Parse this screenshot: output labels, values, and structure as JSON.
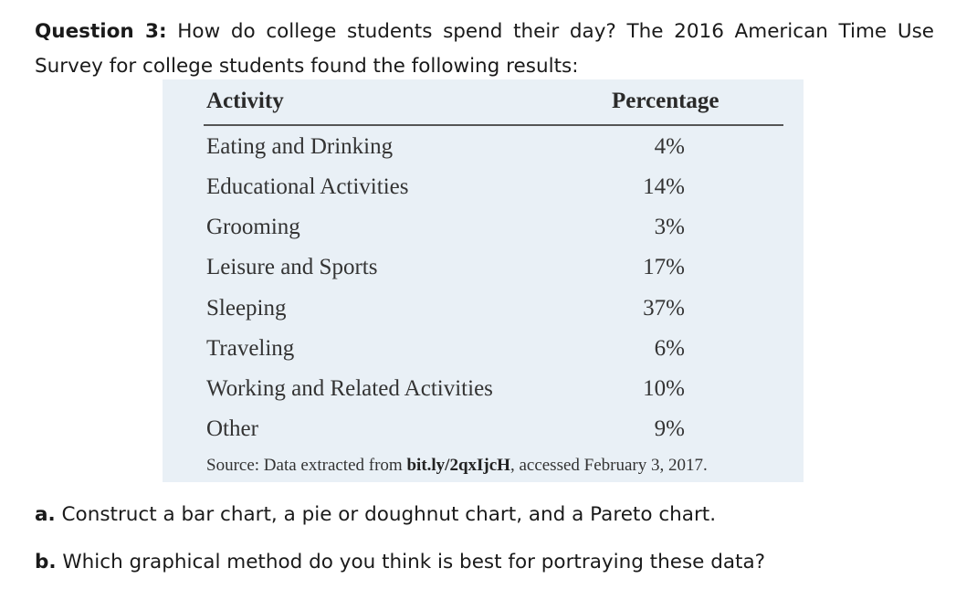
{
  "question": {
    "label": "Question 3:",
    "text": "How do college students spend their day? The 2016 American Time Use Survey for college students found the following results:"
  },
  "table": {
    "headers": {
      "activity": "Activity",
      "percentage": "Percentage"
    },
    "rows": [
      {
        "activity": "Eating and Drinking",
        "percentage": "4%"
      },
      {
        "activity": "Educational Activities",
        "percentage": "14%"
      },
      {
        "activity": "Grooming",
        "percentage": "3%"
      },
      {
        "activity": "Leisure and Sports",
        "percentage": "17%"
      },
      {
        "activity": "Sleeping",
        "percentage": "37%"
      },
      {
        "activity": "Traveling",
        "percentage": "6%"
      },
      {
        "activity": "Working and Related Activities",
        "percentage": "10%"
      },
      {
        "activity": "Other",
        "percentage": "9%"
      }
    ],
    "source": {
      "prefix": "Source: Data extracted from",
      "link": "bit.ly/2qxIjcH",
      "suffix": ", accessed February 3, 2017."
    }
  },
  "parts": {
    "a": {
      "label": "a.",
      "text": "Construct a bar chart, a pie or doughnut chart, and a Pareto chart."
    },
    "b": {
      "label": "b.",
      "text": "Which graphical method do you think is best for portraying these data?"
    }
  },
  "colors": {
    "table_background": "#e9f0f6"
  }
}
